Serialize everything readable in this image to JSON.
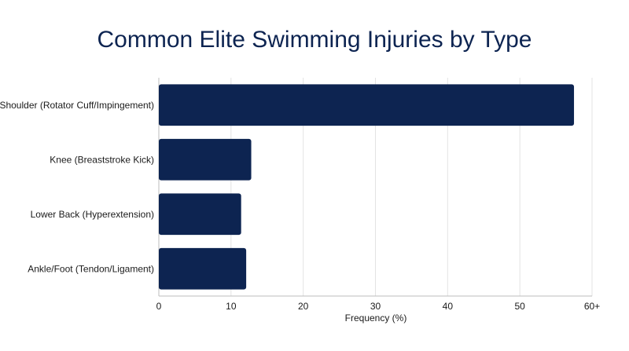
{
  "chart_data": {
    "type": "bar",
    "orientation": "horizontal",
    "title": "Common Elite Swimming Injuries by Type",
    "xlabel": "Frequency (%)",
    "ylabel": "",
    "categories": [
      "Shoulder (Rotator Cuff/Impingement)",
      "Knee (Breaststroke Kick)",
      "Lower Back (Hyperextension)",
      "Ankle/Foot (Tendon/Ligament)"
    ],
    "values": [
      57.5,
      12.8,
      11.4,
      12.1
    ],
    "xlim": [
      0,
      60
    ],
    "ticks": [
      "0",
      "10",
      "20",
      "30",
      "40",
      "50",
      "60+"
    ],
    "bar_color": "#0d2451",
    "grid": true
  }
}
